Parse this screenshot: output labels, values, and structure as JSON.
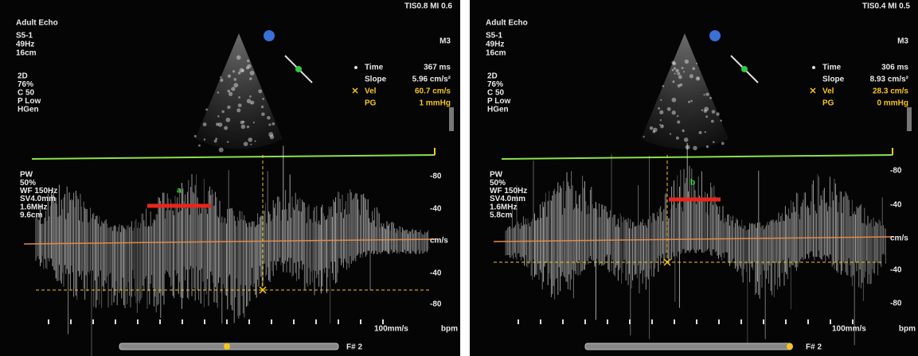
{
  "panels": [
    {
      "label": "a",
      "header": {
        "mode": "Adult Echo",
        "index": "TIS0.8  MI 0.6"
      },
      "probe": [
        "S5-1",
        "49Hz",
        "16cm"
      ],
      "imaging": [
        "2D",
        "76%",
        "C 50",
        "P Low",
        "HGen"
      ],
      "marker": "M3",
      "measurements": [
        {
          "name": "Time",
          "value": "367 ms"
        },
        {
          "name": "Slope",
          "value": "5.96 cm/s²"
        },
        {
          "name": "Vel",
          "value": "60.7 cm/s"
        },
        {
          "name": "PG",
          "value": "1 mmHg"
        }
      ],
      "doppler": [
        "PW",
        "50%",
        "WF 150Hz",
        "SV4.0mm",
        "1.6MHz",
        "9.6cm"
      ],
      "scale": [
        "-80",
        "-40",
        "cm/s",
        "-40",
        "-80"
      ],
      "sweep": "100mm/s",
      "rate": "bpm",
      "frame": "F# 2"
    },
    {
      "label": "b",
      "header": {
        "mode": "Adult Echo",
        "index": "TIS0.4  MI 0.5"
      },
      "probe": [
        "S5-1",
        "49Hz",
        "16cm"
      ],
      "imaging": [
        "2D",
        "76%",
        "C 50",
        "P Low",
        "HGen"
      ],
      "marker": "M3",
      "measurements": [
        {
          "name": "Time",
          "value": "306 ms"
        },
        {
          "name": "Slope",
          "value": "8.93 cm/s²"
        },
        {
          "name": "Vel",
          "value": "28.3 cm/s"
        },
        {
          "name": "PG",
          "value": "0 mmHg"
        }
      ],
      "doppler": [
        "PW",
        "50%",
        "WF 150Hz",
        "SV4.0mm",
        "1.6MHz",
        "5.8cm"
      ],
      "scale": [
        "-80",
        "-40",
        "cm/s",
        "-40",
        "-80"
      ],
      "sweep": "100mm/s",
      "rate": "bpm",
      "frame": "F# 2"
    }
  ]
}
